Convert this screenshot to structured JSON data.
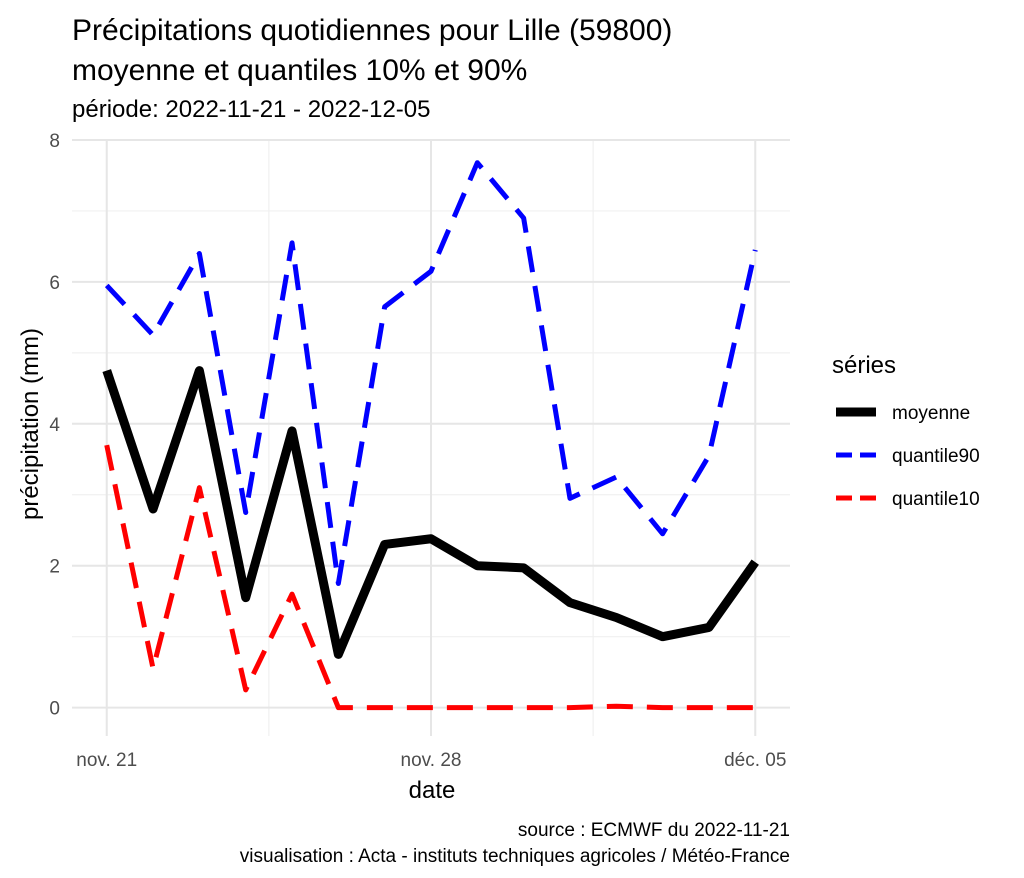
{
  "chart_data": {
    "type": "line",
    "title_line1": "Précipitations quotidiennes pour Lille (59800)",
    "title_line2": "moyenne et quantiles 10% et 90%",
    "subtitle": "période: 2022-11-21 - 2022-12-05",
    "xlabel": "date",
    "ylabel": "précipitation (mm)",
    "x_tick_labels": [
      "nov. 21",
      "nov. 28",
      "déc. 05"
    ],
    "x_tick_days": [
      0,
      7,
      14
    ],
    "y_ticks": [
      0,
      2,
      4,
      6,
      8
    ],
    "xlim": [
      -0.75,
      14.75
    ],
    "ylim": [
      -0.4,
      8.0
    ],
    "x_days": [
      0,
      1,
      2,
      3,
      4,
      5,
      6,
      7,
      8,
      9,
      10,
      11,
      12,
      13,
      14
    ],
    "legend_title": "séries",
    "series": [
      {
        "name": "moyenne",
        "color": "#000000",
        "style": "solid",
        "values": [
          4.75,
          2.8,
          4.75,
          1.55,
          3.9,
          0.75,
          2.3,
          2.38,
          2.0,
          1.97,
          1.48,
          1.27,
          1.0,
          1.13,
          2.05
        ]
      },
      {
        "name": "quantile90",
        "color": "#0000ff",
        "style": "dashed",
        "values": [
          5.95,
          5.25,
          6.4,
          2.75,
          6.55,
          1.75,
          5.65,
          6.15,
          7.68,
          6.9,
          2.95,
          3.25,
          2.45,
          3.55,
          6.45
        ]
      },
      {
        "name": "quantile10",
        "color": "#ff0000",
        "style": "dashed",
        "values": [
          3.7,
          0.55,
          3.1,
          0.25,
          1.6,
          0.0,
          0.0,
          0.0,
          0.0,
          0.0,
          0.0,
          0.02,
          0.0,
          0.0,
          0.0
        ]
      }
    ],
    "caption_line1": "source : ECMWF du 2022-11-21",
    "caption_line2": "visualisation : Acta - instituts techniques agricoles / Météo-France"
  }
}
